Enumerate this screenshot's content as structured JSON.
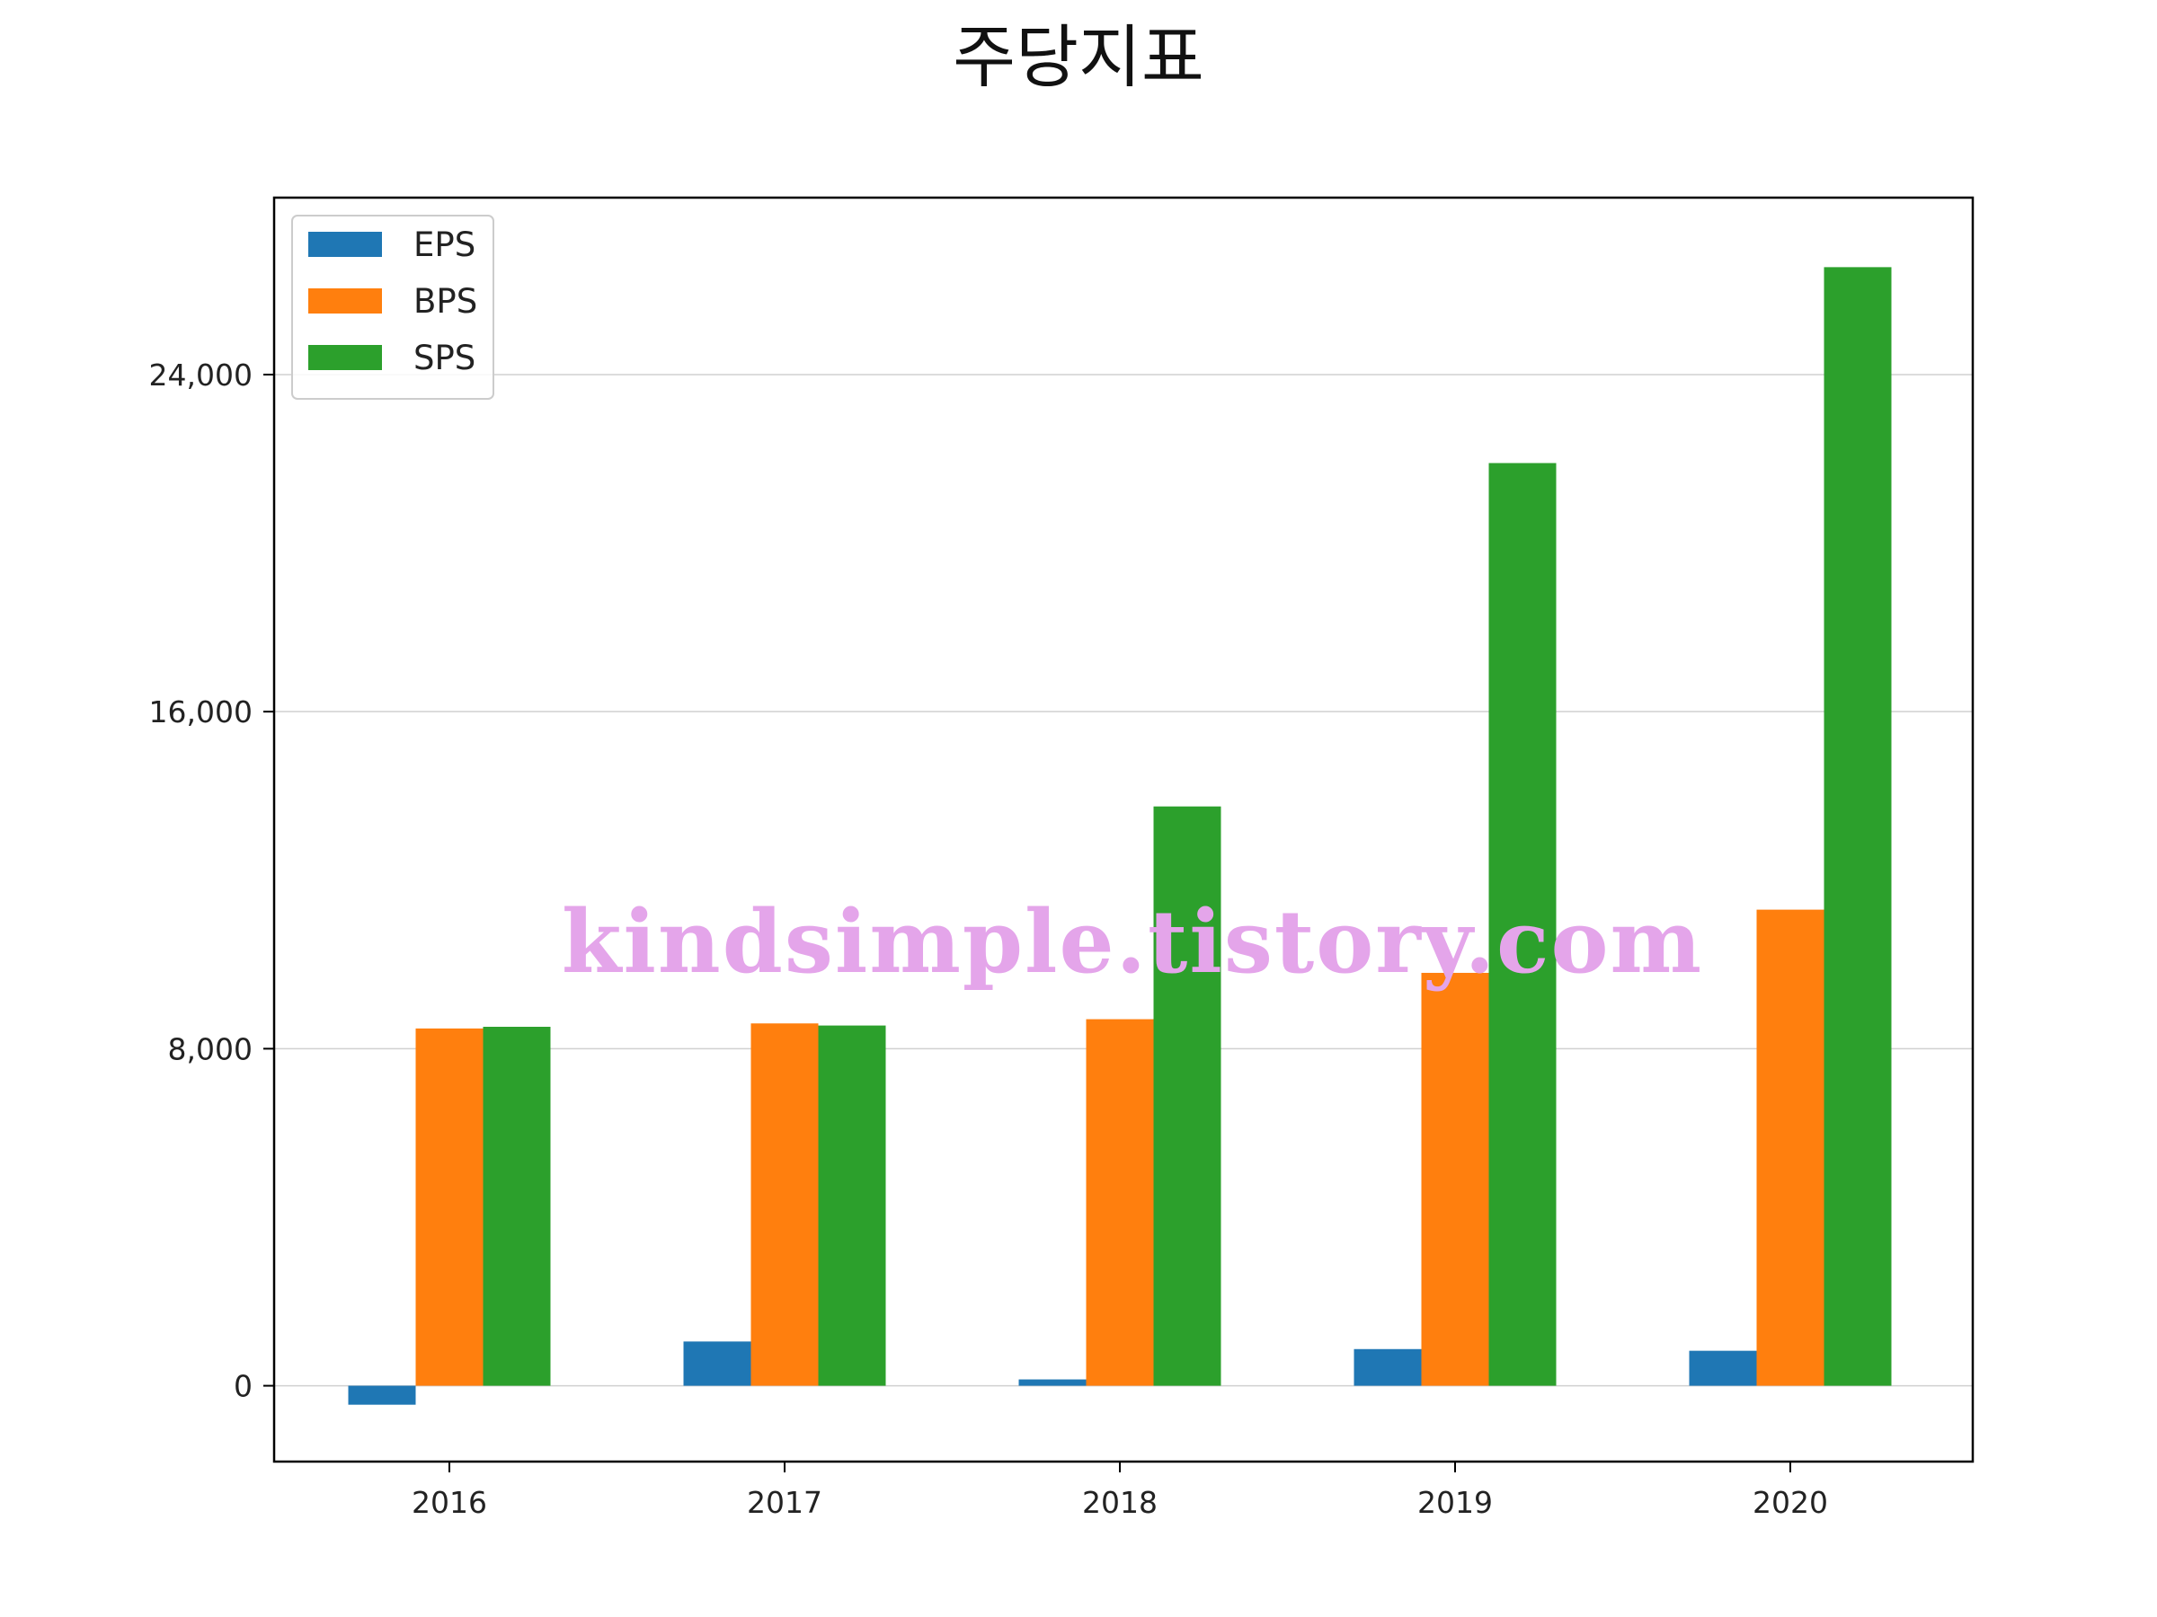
{
  "chart_data": {
    "type": "bar",
    "title": "주당지표",
    "xlabel": "",
    "ylabel": "",
    "categories": [
      "2016",
      "2017",
      "2018",
      "2019",
      "2020"
    ],
    "series": [
      {
        "name": "EPS",
        "color": "#1f77b4",
        "values": [
          -450,
          1050,
          150,
          870,
          830
        ]
      },
      {
        "name": "BPS",
        "color": "#ff7f0e",
        "values": [
          8480,
          8600,
          8700,
          9800,
          11300
        ]
      },
      {
        "name": "SPS",
        "color": "#2ca02c",
        "values": [
          8520,
          8550,
          13750,
          21900,
          26550
        ]
      }
    ],
    "ylim": [
      -1800,
      28200
    ],
    "yticks": [
      0,
      8000,
      16000,
      24000
    ],
    "ytick_labels": [
      "0",
      "8,000",
      "16,000",
      "24,000"
    ],
    "grid": "y",
    "legend_position": "top-left",
    "watermark": "kindsimple.tistory.com"
  }
}
